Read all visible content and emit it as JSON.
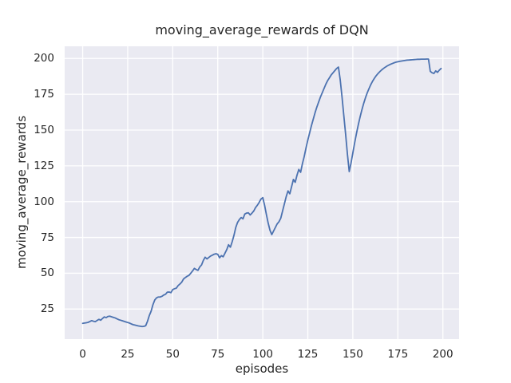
{
  "figure": {
    "background": "#ffffff"
  },
  "chart_data": {
    "type": "line",
    "title": "moving_average_rewards of DQN",
    "xlabel": "episodes",
    "ylabel": "moving_average_rewards",
    "x_ticks": [
      0,
      25,
      50,
      75,
      100,
      125,
      150,
      175,
      200
    ],
    "y_ticks": [
      25,
      50,
      75,
      100,
      125,
      150,
      175,
      200
    ],
    "xlim": [
      -10,
      209
    ],
    "ylim": [
      4,
      208.5
    ],
    "grid": true,
    "legend": "none",
    "style": {
      "plot_bg": "#eaeaf2",
      "grid_color": "#ffffff",
      "grid_width": 1.3,
      "line_color": "#4c72b0",
      "line_width": 1.8,
      "text_color": "#262626"
    },
    "series": [
      {
        "name": "moving_average_rewards",
        "x_start": 0,
        "x_step": 1,
        "y": [
          15.0,
          15.2,
          15.4,
          15.7,
          16.3,
          16.9,
          16.5,
          16.2,
          17.0,
          17.8,
          17.2,
          18.4,
          19.5,
          19.0,
          19.8,
          20.0,
          19.6,
          19.2,
          18.8,
          18.2,
          17.6,
          17.2,
          16.8,
          16.4,
          16.0,
          15.6,
          15.2,
          14.6,
          14.1,
          13.8,
          13.5,
          13.2,
          13.0,
          12.8,
          12.9,
          13.4,
          16.5,
          20.5,
          23.5,
          28.0,
          31.3,
          32.8,
          33.4,
          33.4,
          33.9,
          34.8,
          35.3,
          36.8,
          36.9,
          36.4,
          38.6,
          39.2,
          39.6,
          41.4,
          42.5,
          43.8,
          46.0,
          47.0,
          47.9,
          48.5,
          50.0,
          51.6,
          53.4,
          52.6,
          52.0,
          54.4,
          55.8,
          59.0,
          61.2,
          60.0,
          61.0,
          62.0,
          62.6,
          63.3,
          63.6,
          63.2,
          60.8,
          62.3,
          61.5,
          64.0,
          66.5,
          69.9,
          68.2,
          72.0,
          76.5,
          82.0,
          85.5,
          87.5,
          88.9,
          88.0,
          91.3,
          92.0,
          92.2,
          90.7,
          92.0,
          93.5,
          95.9,
          97.5,
          99.5,
          101.8,
          102.8,
          97.5,
          91.0,
          85.0,
          80.0,
          77.0,
          79.5,
          82.0,
          84.5,
          86.0,
          88.5,
          93.5,
          98.5,
          103.5,
          107.5,
          105.5,
          110.5,
          115.5,
          113.5,
          118.5,
          122.5,
          120.5,
          126.5,
          131.5,
          137.5,
          143.0,
          148.0,
          153.0,
          157.5,
          162.0,
          166.0,
          169.5,
          173.0,
          176.0,
          179.0,
          182.0,
          184.5,
          186.5,
          188.5,
          190.0,
          191.5,
          193.0,
          194.0,
          185.0,
          173.0,
          160.0,
          147.0,
          133.0,
          121.0,
          127.0,
          134.0,
          141.0,
          147.5,
          153.5,
          159.0,
          164.0,
          168.5,
          172.5,
          176.0,
          179.0,
          181.8,
          184.2,
          186.2,
          188.0,
          189.5,
          190.8,
          192.0,
          193.0,
          193.9,
          194.7,
          195.4,
          196.0,
          196.5,
          197.0,
          197.4,
          197.7,
          198.0,
          198.2,
          198.4,
          198.6,
          198.8,
          198.9,
          199.0,
          199.1,
          199.2,
          199.3,
          199.4,
          199.4,
          199.5,
          199.5,
          199.5,
          199.6,
          199.6,
          191.0,
          190.0,
          189.5,
          191.3,
          190.3,
          191.8,
          193.0
        ]
      }
    ]
  }
}
